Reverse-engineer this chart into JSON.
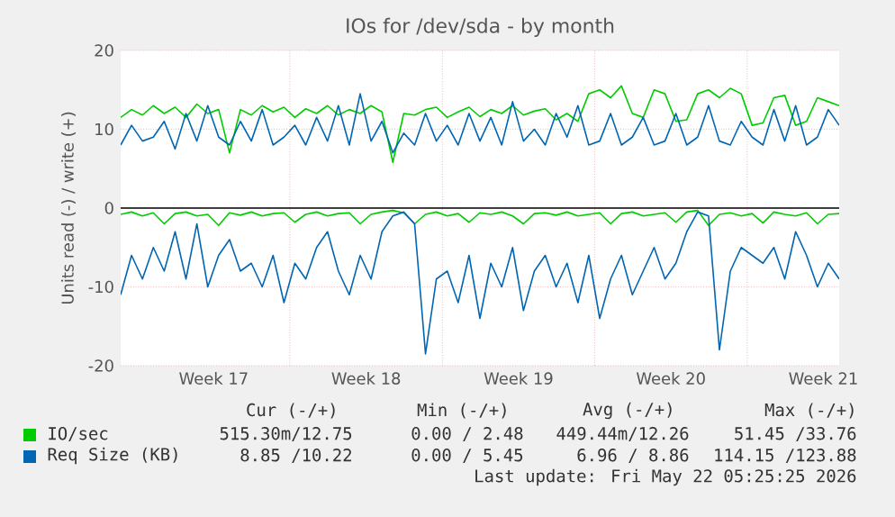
{
  "chart_data": {
    "type": "line",
    "title": "IOs for /dev/sda - by month",
    "ylabel": "Units read (-) / write (+)",
    "x": [
      "2026-04-19T05:25",
      "2026-04-19T17:25",
      "2026-04-20T05:25",
      "2026-04-20T17:25",
      "2026-04-21T05:25",
      "2026-04-21T17:25",
      "2026-04-22T05:25",
      "2026-04-22T17:25",
      "2026-04-23T05:25",
      "2026-04-23T17:25",
      "2026-04-24T05:25",
      "2026-04-24T17:25",
      "2026-04-25T05:25",
      "2026-04-25T17:25",
      "2026-04-26T05:25",
      "2026-04-26T17:25",
      "2026-04-27T05:25",
      "2026-04-27T17:25",
      "2026-04-28T05:25",
      "2026-04-28T17:25",
      "2026-04-29T05:25",
      "2026-04-29T17:25",
      "2026-04-30T05:25",
      "2026-04-30T17:25",
      "2026-05-01T05:25",
      "2026-05-01T17:25",
      "2026-05-02T05:25",
      "2026-05-02T17:25",
      "2026-05-03T05:25",
      "2026-05-03T17:25",
      "2026-05-04T05:25",
      "2026-05-04T17:25",
      "2026-05-05T05:25",
      "2026-05-05T17:25",
      "2026-05-06T05:25",
      "2026-05-06T17:25",
      "2026-05-07T05:25",
      "2026-05-07T17:25",
      "2026-05-08T05:25",
      "2026-05-08T17:25",
      "2026-05-09T05:25",
      "2026-05-09T17:25",
      "2026-05-10T05:25",
      "2026-05-10T17:25",
      "2026-05-11T05:25",
      "2026-05-11T17:25",
      "2026-05-12T05:25",
      "2026-05-12T17:25",
      "2026-05-13T05:25",
      "2026-05-13T17:25",
      "2026-05-14T05:25",
      "2026-05-14T17:25",
      "2026-05-15T05:25",
      "2026-05-15T17:25",
      "2026-05-16T05:25",
      "2026-05-16T17:25",
      "2026-05-17T05:25",
      "2026-05-17T17:25",
      "2026-05-18T05:25",
      "2026-05-18T17:25",
      "2026-05-19T05:25",
      "2026-05-19T17:25",
      "2026-05-20T05:25",
      "2026-05-20T17:25",
      "2026-05-21T05:25",
      "2026-05-21T17:25",
      "2026-05-22T05:25"
    ],
    "xlim": [
      "2026-04-19T05:25",
      "2026-05-22T05:25"
    ],
    "xticks": [
      {
        "value": "2026-04-23T12:00",
        "label": "Week 17"
      },
      {
        "value": "2026-04-27",
        "label": null
      },
      {
        "value": "2026-04-30T12:00",
        "label": "Week 18"
      },
      {
        "value": "2026-05-04",
        "label": null
      },
      {
        "value": "2026-05-07T12:00",
        "label": "Week 19"
      },
      {
        "value": "2026-05-11",
        "label": null
      },
      {
        "value": "2026-05-14T12:00",
        "label": "Week 20"
      },
      {
        "value": "2026-05-18",
        "label": null
      },
      {
        "value": "2026-05-21T12:00",
        "label": "Week 21"
      }
    ],
    "ylim": [
      -20,
      20
    ],
    "yticks": [
      -20,
      -10,
      0,
      10,
      20
    ],
    "grid": true,
    "legend": "bottom",
    "ref_lines": [
      {
        "axis": "y",
        "value": 0,
        "color": "#000000"
      }
    ],
    "series": [
      {
        "name": "IO/sec",
        "color": "#00cc00",
        "values": [
          11.5,
          12.5,
          11.8,
          13,
          12,
          12.8,
          11.5,
          13.2,
          12,
          12.5,
          7,
          12.5,
          11.8,
          13,
          12.2,
          12.8,
          11.5,
          12.6,
          12,
          13,
          11.8,
          12.5,
          12,
          13,
          12.2,
          5.8,
          12,
          11.8,
          12.5,
          12.8,
          11.5,
          12.2,
          12.8,
          11.6,
          12.5,
          12,
          13,
          11.8,
          12.3,
          12.6,
          11.2,
          12,
          11,
          14.5,
          15,
          14,
          15.5,
          12,
          11.5,
          15,
          14.5,
          11,
          11.2,
          14.5,
          15,
          14,
          15.2,
          14.5,
          10.5,
          10.8,
          14,
          14.3,
          10.5,
          11,
          14,
          13.5,
          13
        ]
      },
      {
        "color": "#00cc00",
        "values": [
          -0.8,
          -0.5,
          -1,
          -0.6,
          -2,
          -0.7,
          -0.5,
          -1,
          -0.8,
          -2.2,
          -0.6,
          -0.9,
          -0.5,
          -1,
          -0.7,
          -0.6,
          -1.8,
          -0.8,
          -0.5,
          -1,
          -0.7,
          -0.6,
          -2,
          -0.8,
          -0.5,
          -0.3,
          -0.6,
          -2,
          -0.8,
          -0.5,
          -1,
          -0.7,
          -1.8,
          -0.6,
          -0.8,
          -0.5,
          -1,
          -2,
          -0.7,
          -0.6,
          -0.9,
          -0.5,
          -1,
          -0.8,
          -0.6,
          -2,
          -0.7,
          -0.5,
          -1,
          -0.8,
          -0.6,
          -1.8,
          -0.5,
          -0.3,
          -2.2,
          -0.8,
          -0.6,
          -1,
          -0.7,
          -1.9,
          -0.5,
          -0.8,
          -1,
          -0.6,
          -2,
          -0.8,
          -0.7
        ]
      },
      {
        "name": "Req Size (KB)",
        "color": "#0066b3",
        "values": [
          8,
          10.5,
          8.5,
          9,
          11,
          7.5,
          12,
          8.5,
          13,
          9,
          8,
          11,
          8.5,
          12.5,
          8,
          9,
          10.5,
          8,
          11.5,
          8.5,
          13,
          8,
          14.5,
          8.5,
          11,
          7,
          9.5,
          8,
          12,
          8.5,
          10.5,
          8,
          12,
          8.5,
          11.5,
          8,
          13.5,
          8.5,
          10,
          8,
          12,
          9,
          13,
          8,
          8.5,
          12,
          8,
          9,
          11.5,
          8,
          8.5,
          12,
          8,
          9,
          13,
          8.5,
          8,
          11,
          9,
          8,
          12.5,
          8.5,
          13,
          8,
          9,
          12.5,
          10.5
        ]
      },
      {
        "color": "#0066b3",
        "values": [
          -11,
          -6,
          -9,
          -5,
          -8,
          -3,
          -9,
          -2,
          -10,
          -6,
          -4,
          -8,
          -7,
          -10,
          -6,
          -12,
          -7,
          -9,
          -5,
          -3,
          -8,
          -11,
          -6,
          -9,
          -3,
          -1,
          -0.5,
          -2,
          -18.5,
          -9,
          -8,
          -12,
          -6,
          -14,
          -7,
          -10,
          -5,
          -13,
          -8,
          -6,
          -10,
          -7,
          -12,
          -6,
          -14,
          -9,
          -6,
          -11,
          -8,
          -5,
          -9,
          -7,
          -3,
          -0.5,
          -1,
          -18,
          -8,
          -5,
          -6,
          -7,
          -5,
          -9,
          -3,
          -6,
          -10,
          -7,
          -9
        ]
      }
    ],
    "annotations": [
      "Cur (-/+)",
      "Min (-/+)",
      "Avg (-/+)",
      "Max (-/+)",
      "515.30m/12.75",
      "0.00 / 2.48",
      "449.44m/12.26",
      "51.45 /33.76",
      "8.85 /10.22",
      "0.00 / 5.45",
      "6.96 / 8.86",
      "114.15 /123.88",
      "Last update: Fri May 22 05:25:25 2026"
    ]
  }
}
